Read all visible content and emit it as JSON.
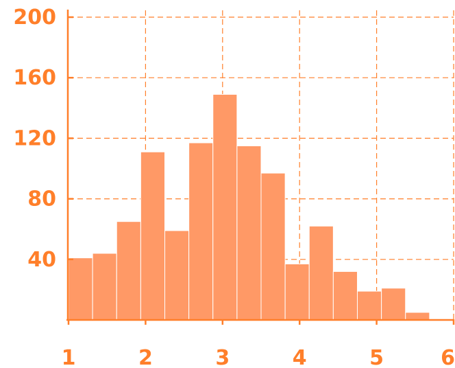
{
  "chart_data": {
    "type": "bar",
    "title": "",
    "xlabel": "",
    "ylabel": "",
    "xlim": [
      1,
      6
    ],
    "ylim": [
      0,
      200
    ],
    "x_ticks": [
      "1",
      "2",
      "3",
      "4",
      "5",
      "6"
    ],
    "y_ticks": [
      "40",
      "80",
      "120",
      "160",
      "200"
    ],
    "grid": true,
    "bar_color": "#ff9966",
    "accent_color": "#ff7f2a",
    "bin_width": 0.3125,
    "bins": [
      {
        "start": 1.0,
        "value": 41
      },
      {
        "start": 1.3125,
        "value": 44
      },
      {
        "start": 1.625,
        "value": 65
      },
      {
        "start": 1.9375,
        "value": 111
      },
      {
        "start": 2.25,
        "value": 59
      },
      {
        "start": 2.5625,
        "value": 117
      },
      {
        "start": 2.875,
        "value": 149
      },
      {
        "start": 3.1875,
        "value": 115
      },
      {
        "start": 3.5,
        "value": 97
      },
      {
        "start": 3.8125,
        "value": 37
      },
      {
        "start": 4.125,
        "value": 62
      },
      {
        "start": 4.4375,
        "value": 32
      },
      {
        "start": 4.75,
        "value": 19
      },
      {
        "start": 5.0625,
        "value": 21
      },
      {
        "start": 5.375,
        "value": 5
      }
    ]
  }
}
